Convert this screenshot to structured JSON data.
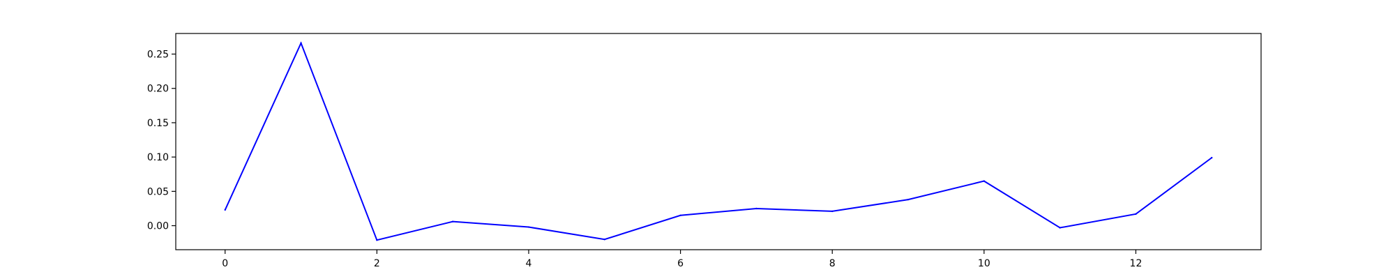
{
  "chart_data": {
    "type": "line",
    "title": "",
    "xlabel": "",
    "ylabel": "",
    "x": [
      0,
      1,
      2,
      3,
      4,
      5,
      6,
      7,
      8,
      9,
      10,
      11,
      12,
      13
    ],
    "series": [
      {
        "values": [
          0.023,
          0.266,
          -0.021,
          0.006,
          -0.002,
          -0.02,
          0.015,
          0.025,
          0.021,
          0.038,
          0.065,
          -0.003,
          0.017,
          0.099
        ],
        "color": "#0000ff"
      }
    ],
    "xlim": [
      -0.65,
      13.65
    ],
    "ylim": [
      -0.035,
      0.28
    ],
    "xticks": [
      0,
      2,
      4,
      6,
      8,
      10,
      12
    ],
    "xtick_labels": [
      "0",
      "2",
      "4",
      "6",
      "8",
      "10",
      "12"
    ],
    "yticks": [
      0.0,
      0.05,
      0.1,
      0.15,
      0.2,
      0.25
    ],
    "ytick_labels": [
      "0.00",
      "0.05",
      "0.10",
      "0.15",
      "0.20",
      "0.25"
    ],
    "grid": false,
    "legend": "none"
  }
}
